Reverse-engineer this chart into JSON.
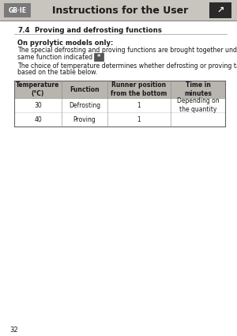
{
  "page_bg": "#ffffff",
  "header_bg": "#c8c4be",
  "header_text": "Instructions for the User",
  "header_text_color": "#1a1a1a",
  "header_label": "GB·IE",
  "header_label_bg": "#7a7a7a",
  "header_label_color": "#ffffff",
  "section_title_num": "7.4",
  "section_title_text": "Proving and defrosting functions",
  "bold_intro": "On pyrolytic models only:",
  "para1_line1": "The special defrosting and proving functions are brought together under the",
  "para1_line2": "same function indicated by",
  "para2_line1": "The choice of temperature determines whether defrosting or proving takes place",
  "para2_line2": "based on the table below.",
  "table_header_bg": "#b8b4ae",
  "table_header_color": "#1a1a1a",
  "table_cols": [
    "Temperature\n(°C)",
    "Function",
    "Runner position\nfrom the bottom",
    "Time in\nminutes"
  ],
  "table_rows": [
    [
      "30",
      "Defrosting",
      "1",
      "Depending on\nthe quantity"
    ],
    [
      "40",
      "Proving",
      "1",
      ""
    ]
  ],
  "footer_page": "32",
  "icon_bg": "#2a2a2a"
}
